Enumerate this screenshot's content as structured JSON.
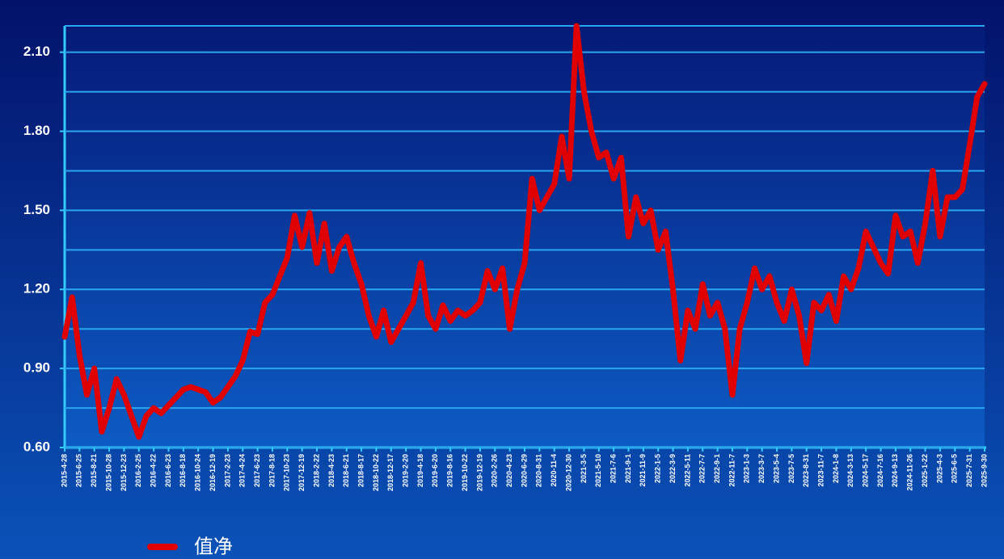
{
  "chart_data": {
    "type": "line",
    "categories": [
      "2015-4-28",
      null,
      "2015-6-25",
      null,
      "2015-8-21",
      null,
      "2015-10-28",
      null,
      "2015-12-23",
      null,
      "2016-2-25",
      null,
      "2016-4-22",
      null,
      "2016-6-23",
      null,
      "2016-8-18",
      null,
      "2016-10-24",
      null,
      "2016-12-19",
      null,
      "2017-2-23",
      null,
      "2017-4-24",
      null,
      "2017-6-23",
      null,
      "2017-8-18",
      null,
      "2017-10-23",
      null,
      "2017-12-19",
      null,
      "2018-2-22",
      null,
      "2018-4-23",
      null,
      "2018-6-21",
      null,
      "2018-8-17",
      null,
      "2018-10-22",
      null,
      "2018-12-17",
      null,
      "2019-2-20",
      null,
      "2019-4-18",
      null,
      "2019-6-20",
      null,
      "2019-8-16",
      null,
      "2019-10-22",
      null,
      "2019-12-19",
      null,
      "2020-2-26",
      null,
      "2020-4-23",
      null,
      "2020-6-29",
      null,
      "2020-8-31",
      null,
      "2020-11-4",
      null,
      "2020-12-30",
      null,
      "2021-3-5",
      null,
      "2021-5-10",
      null,
      "2021-7-6",
      null,
      "2021-9-1",
      null,
      "2021-11-9",
      null,
      "2022-1-5",
      null,
      "2022-3-9",
      null,
      "2022-5-11",
      null,
      "2022-7-7",
      null,
      "2022-9-1",
      null,
      "2022-11-7",
      null,
      "2023-1-3",
      null,
      "2023-3-7",
      null,
      "2023-5-4",
      null,
      "2023-7-5",
      null,
      "2023-8-31",
      null,
      "2023-11-7",
      null,
      "2024-1-8",
      null,
      "2024-3-13",
      null,
      "2024-5-17",
      null,
      "2024-7-16",
      null,
      "2024-9-13",
      null,
      "2024-11-26",
      null,
      "2025-1-22",
      null,
      "2025-4-3",
      null,
      "2025-6-5",
      null,
      "2025-7-31",
      null,
      "2025-9-30"
    ],
    "series": [
      {
        "name": "值净",
        "color": "#e00000",
        "values": [
          1.02,
          1.17,
          0.95,
          0.8,
          0.9,
          0.66,
          0.75,
          0.86,
          0.8,
          0.72,
          0.64,
          0.72,
          0.75,
          0.73,
          0.76,
          0.79,
          0.82,
          0.83,
          0.82,
          0.81,
          0.77,
          0.79,
          0.83,
          0.87,
          0.93,
          1.04,
          1.03,
          1.15,
          1.18,
          1.25,
          1.32,
          1.48,
          1.36,
          1.49,
          1.3,
          1.45,
          1.27,
          1.36,
          1.4,
          1.3,
          1.22,
          1.1,
          1.02,
          1.12,
          1.0,
          1.05,
          1.1,
          1.15,
          1.3,
          1.1,
          1.05,
          1.14,
          1.08,
          1.12,
          1.1,
          1.12,
          1.15,
          1.27,
          1.2,
          1.28,
          1.05,
          1.2,
          1.3,
          1.62,
          1.5,
          1.55,
          1.6,
          1.78,
          1.62,
          2.2,
          1.95,
          1.8,
          1.7,
          1.72,
          1.62,
          1.7,
          1.4,
          1.55,
          1.45,
          1.5,
          1.35,
          1.42,
          1.2,
          0.93,
          1.12,
          1.05,
          1.22,
          1.1,
          1.15,
          1.05,
          0.8,
          1.05,
          1.15,
          1.28,
          1.2,
          1.25,
          1.15,
          1.08,
          1.2,
          1.1,
          0.92,
          1.15,
          1.12,
          1.18,
          1.08,
          1.25,
          1.2,
          1.28,
          1.42,
          1.36,
          1.3,
          1.26,
          1.48,
          1.4,
          1.42,
          1.3,
          1.45,
          1.65,
          1.4,
          1.55,
          1.55,
          1.58,
          1.75,
          1.93,
          1.98
        ]
      }
    ],
    "ylim": [
      0.6,
      2.2
    ],
    "yticks": [
      {
        "value": 0.6,
        "label": "0.60"
      },
      {
        "value": 0.9,
        "label": "0.90"
      },
      {
        "value": 1.2,
        "label": "1.20"
      },
      {
        "value": 1.5,
        "label": "1.50"
      },
      {
        "value": 1.8,
        "label": "1.80"
      },
      {
        "value": 2.1,
        "label": "2.10"
      }
    ],
    "minor_grid": [
      0.75,
      1.05,
      1.35,
      1.65,
      1.95,
      2.2
    ],
    "grid": true,
    "legend": "bottom-left"
  }
}
